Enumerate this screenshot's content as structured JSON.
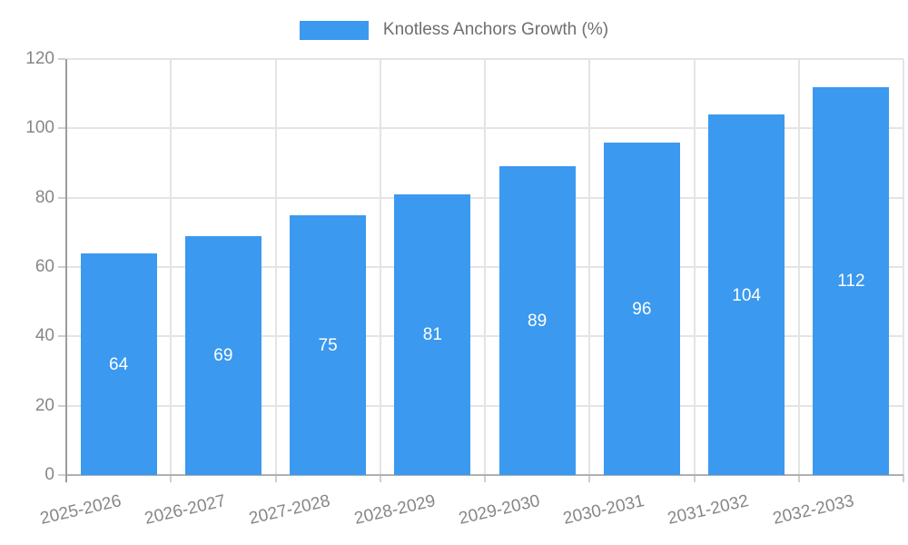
{
  "legend": {
    "items": [
      {
        "label": "Knotless Anchors Growth (%)",
        "color": "#3B99EF"
      }
    ],
    "position": "top-center"
  },
  "colors": {
    "bar": "#3B99EF",
    "bar_label": "#FFFFFF",
    "grid_line": "#E4E4E4",
    "y_axis_line": "#9C9C9C",
    "x_axis_line": "#B0B0B0",
    "tick": "#CFCFCF",
    "axis_text": "#878787",
    "legend_text": "#6F6F6F",
    "background": "#FFFFFF"
  },
  "chart_data": {
    "type": "bar",
    "title": "Knotless Anchors Growth (%)",
    "categories": [
      "2025-2026",
      "2026-2027",
      "2027-2028",
      "2028-2029",
      "2029-2030",
      "2030-2031",
      "2031-2032",
      "2032-2033"
    ],
    "series": [
      {
        "name": "Knotless Anchors Growth (%)",
        "values": [
          64,
          69,
          75,
          81,
          89,
          96,
          104,
          112
        ]
      }
    ],
    "xlabel": "",
    "ylabel": "",
    "ylim": [
      0,
      120
    ],
    "yticks": [
      0,
      20,
      40,
      60,
      80,
      100,
      120
    ],
    "grid": true,
    "bar_value_labels": true,
    "x_label_rotation_deg": -13,
    "legend_position": "top"
  }
}
